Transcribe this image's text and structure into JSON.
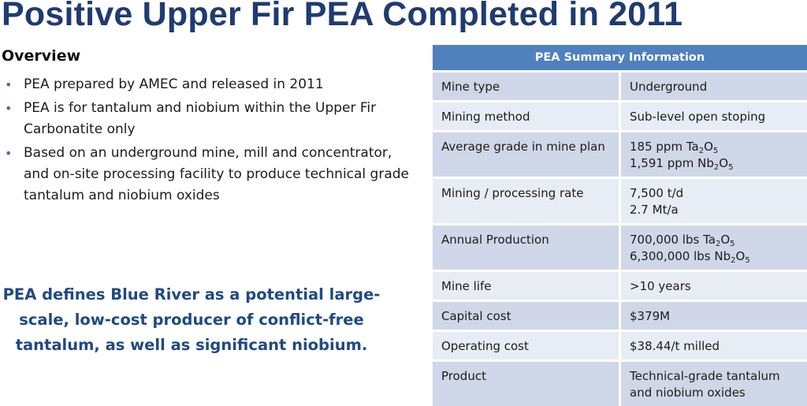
{
  "title": "Positive Upper Fir PEA Completed in 2011",
  "overview": {
    "heading": "Overview",
    "bullets": [
      "PEA prepared by AMEC and released in 2011",
      "PEA is for tantalum and niobium within the Upper Fir Carbonatite only",
      "Based on an underground mine, mill and concentrator, and on-site processing facility to produce technical grade tantalum and niobium oxides"
    ]
  },
  "callout": "PEA defines Blue River as a potential large-scale, low-cost producer of conflict-free tantalum, as well as significant niobium.",
  "table": {
    "header": "PEA Summary Information",
    "rows": [
      {
        "label": "Mine type",
        "value": [
          "Underground"
        ]
      },
      {
        "label": "Mining method",
        "value": [
          "Sub-level open stoping"
        ]
      },
      {
        "label": "Average grade in mine plan",
        "value": [
          "185 ppm Ta2O5",
          "1,591 ppm Nb2O5"
        ]
      },
      {
        "label": "Mining / processing rate",
        "value": [
          "7,500 t/d",
          "2.7 Mt/a"
        ]
      },
      {
        "label": "Annual Production",
        "value": [
          "700,000 lbs Ta2O5",
          "6,300,000 lbs Nb2O5"
        ]
      },
      {
        "label": "Mine life",
        "value": [
          ">10 years"
        ]
      },
      {
        "label": "Capital cost",
        "value": [
          "$379M"
        ]
      },
      {
        "label": "Operating cost",
        "value": [
          "$38.44/t milled"
        ]
      },
      {
        "label": "Product",
        "value": [
          "Technical-grade tantalum",
          "and niobium oxides"
        ]
      }
    ]
  },
  "colors": {
    "title": "#1f3b70",
    "callout": "#1f4a82",
    "table_header": "#4f81bd",
    "row_dark": "#cfd7e8",
    "row_light": "#e8ecf4"
  }
}
